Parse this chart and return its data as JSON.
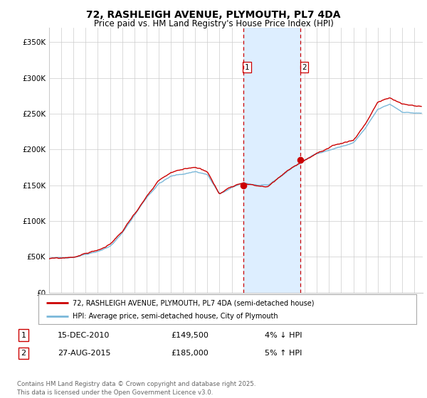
{
  "title": "72, RASHLEIGH AVENUE, PLYMOUTH, PL7 4DA",
  "subtitle": "Price paid vs. HM Land Registry's House Price Index (HPI)",
  "ylabel_ticks": [
    "£0",
    "£50K",
    "£100K",
    "£150K",
    "£200K",
    "£250K",
    "£300K",
    "£350K"
  ],
  "ytick_vals": [
    0,
    50000,
    100000,
    150000,
    200000,
    250000,
    300000,
    350000
  ],
  "ylim": [
    0,
    370000
  ],
  "x_start_year": 1995,
  "x_end_year": 2025,
  "sale1_year": 2010.96,
  "sale1_price": 149500,
  "sale1_label": "1",
  "sale1_date": "15-DEC-2010",
  "sale2_year": 2015.65,
  "sale2_price": 185000,
  "sale2_label": "2",
  "sale2_date": "27-AUG-2015",
  "hpi_line_color": "#7ab8d9",
  "price_line_color": "#cc0000",
  "dot_color": "#cc0000",
  "shaded_color": "#ddeeff",
  "dashed_line_color": "#cc0000",
  "background_color": "#ffffff",
  "grid_color": "#cccccc",
  "legend_label1": "72, RASHLEIGH AVENUE, PLYMOUTH, PL7 4DA (semi-detached house)",
  "legend_label2": "HPI: Average price, semi-detached house, City of Plymouth",
  "footnote": "Contains HM Land Registry data © Crown copyright and database right 2025.\nThis data is licensed under the Open Government Licence v3.0.",
  "table_row1": [
    "1",
    "15-DEC-2010",
    "£149,500",
    "4% ↓ HPI"
  ],
  "table_row2": [
    "2",
    "27-AUG-2015",
    "£185,000",
    "5% ↑ HPI"
  ]
}
